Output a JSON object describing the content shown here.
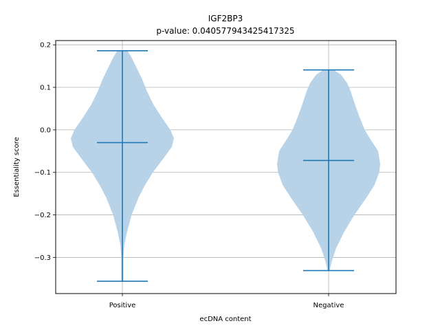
{
  "chart_data": {
    "type": "violin",
    "title": "IGF2BP3",
    "subtitle": "p-value: 0.040577943425417325",
    "xlabel": "ecDNA content",
    "ylabel": "Essentiality score",
    "categories": [
      "Positive",
      "Negative"
    ],
    "ylim": [
      -0.385,
      0.21
    ],
    "yticks": [
      -0.3,
      -0.2,
      -0.1,
      0.0,
      0.1,
      0.2
    ],
    "ytick_labels": [
      "−0.3",
      "−0.2",
      "−0.1",
      "0.0",
      "0.1",
      "0.2"
    ],
    "grid": true,
    "violins": [
      {
        "category": "Positive",
        "max": 0.186,
        "median": -0.03,
        "min": -0.356,
        "density": [
          {
            "y": -0.356,
            "w": 0.02
          },
          {
            "y": -0.33,
            "w": 0.02
          },
          {
            "y": -0.3,
            "w": 0.02
          },
          {
            "y": -0.27,
            "w": 0.04
          },
          {
            "y": -0.24,
            "w": 0.09
          },
          {
            "y": -0.2,
            "w": 0.18
          },
          {
            "y": -0.16,
            "w": 0.31
          },
          {
            "y": -0.13,
            "w": 0.44
          },
          {
            "y": -0.1,
            "w": 0.59
          },
          {
            "y": -0.07,
            "w": 0.78
          },
          {
            "y": -0.04,
            "w": 0.96
          },
          {
            "y": -0.02,
            "w": 1.0
          },
          {
            "y": 0.0,
            "w": 0.93
          },
          {
            "y": 0.03,
            "w": 0.76
          },
          {
            "y": 0.06,
            "w": 0.6
          },
          {
            "y": 0.09,
            "w": 0.48
          },
          {
            "y": 0.12,
            "w": 0.38
          },
          {
            "y": 0.15,
            "w": 0.26
          },
          {
            "y": 0.17,
            "w": 0.18
          },
          {
            "y": 0.186,
            "w": 0.1
          }
        ]
      },
      {
        "category": "Negative",
        "max": 0.141,
        "median": -0.072,
        "min": -0.331,
        "density": [
          {
            "y": -0.331,
            "w": 0.02
          },
          {
            "y": -0.31,
            "w": 0.06
          },
          {
            "y": -0.28,
            "w": 0.14
          },
          {
            "y": -0.24,
            "w": 0.3
          },
          {
            "y": -0.2,
            "w": 0.5
          },
          {
            "y": -0.16,
            "w": 0.73
          },
          {
            "y": -0.13,
            "w": 0.89
          },
          {
            "y": -0.1,
            "w": 0.98
          },
          {
            "y": -0.08,
            "w": 1.0
          },
          {
            "y": -0.05,
            "w": 0.96
          },
          {
            "y": -0.02,
            "w": 0.8
          },
          {
            "y": 0.0,
            "w": 0.7
          },
          {
            "y": 0.03,
            "w": 0.6
          },
          {
            "y": 0.06,
            "w": 0.51
          },
          {
            "y": 0.09,
            "w": 0.43
          },
          {
            "y": 0.11,
            "w": 0.36
          },
          {
            "y": 0.13,
            "w": 0.24
          },
          {
            "y": 0.141,
            "w": 0.1
          }
        ]
      }
    ],
    "colors": {
      "body": "#b8d3e8",
      "line": "#1f77b4",
      "grid": "#b0b0b0",
      "axis": "#000000"
    }
  }
}
